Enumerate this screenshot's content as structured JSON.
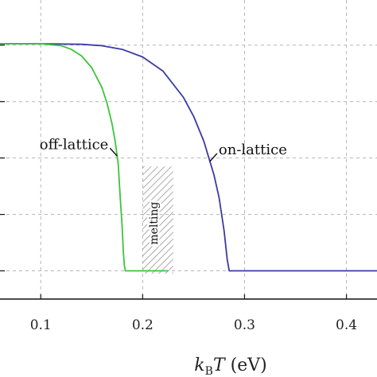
{
  "chart_data": {
    "type": "line",
    "xlabel_var": "k",
    "xlabel_sub": "B",
    "xlabel_var2": "T",
    "xlabel_unit": " (eV)",
    "xlim": [
      0.06,
      0.43
    ],
    "ylim": [
      0,
      1.06
    ],
    "x_ticks": [
      0.1,
      0.2,
      0.3,
      0.4
    ],
    "x_tick_labels": [
      "0.1",
      "0.2",
      "0.3",
      "0.4"
    ],
    "y_grid_values": [
      0.1,
      0.3,
      0.5,
      0.7,
      0.9
    ],
    "grid": true,
    "legend": "none",
    "series": [
      {
        "label": "on-lattice",
        "color": "#3a3aa6",
        "x": [
          0.06,
          0.1,
          0.14,
          0.16,
          0.18,
          0.2,
          0.22,
          0.24,
          0.25,
          0.26,
          0.27,
          0.275,
          0.28,
          0.283,
          0.285,
          0.29,
          0.43
        ],
        "y": [
          0.905,
          0.905,
          0.903,
          0.898,
          0.885,
          0.858,
          0.808,
          0.715,
          0.648,
          0.56,
          0.44,
          0.36,
          0.24,
          0.14,
          0.1,
          0.1,
          0.1
        ]
      },
      {
        "label": "off-lattice",
        "color": "#3cc43c",
        "x": [
          0.06,
          0.1,
          0.12,
          0.13,
          0.14,
          0.15,
          0.16,
          0.165,
          0.17,
          0.173,
          0.176,
          0.178,
          0.18,
          0.181,
          0.182,
          0.183,
          0.185,
          0.225
        ],
        "y": [
          0.905,
          0.905,
          0.898,
          0.885,
          0.862,
          0.82,
          0.75,
          0.695,
          0.62,
          0.56,
          0.48,
          0.36,
          0.25,
          0.17,
          0.12,
          0.1,
          0.1,
          0.1
        ]
      }
    ],
    "annotations": [
      {
        "text": "on-lattice",
        "series": "on-lattice",
        "anchor_x": 0.266
      },
      {
        "text": "off-lattice",
        "series": "off-lattice",
        "anchor_x": 0.175
      }
    ],
    "melting_region": {
      "label": "melting",
      "x_range": [
        0.2,
        0.23
      ],
      "y_range": [
        0.09,
        0.47
      ]
    }
  }
}
